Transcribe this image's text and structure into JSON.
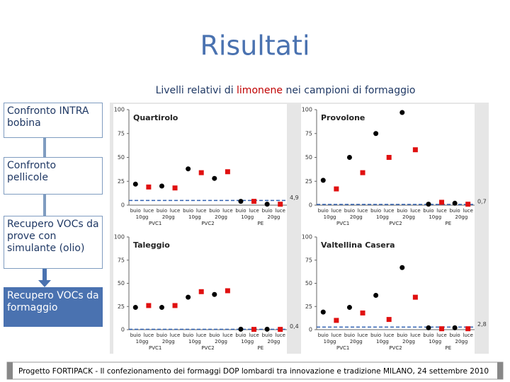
{
  "slide_title": "Risultati",
  "subtitle": [
    "Livelli relativi di ",
    "limonene",
    " nei campioni di formaggio"
  ],
  "steps": [
    "Confronto INTRA bobina",
    "Confronto pellicole",
    "Recupero VOCs da prove con simulante (olio)",
    "Recupero VOCs da formaggio"
  ],
  "footer": {
    "left": "Progetto FORTIPACK - Il confezionamento dei formaggi DOP lombardi tra innovazione e tradizione",
    "right": "MILANO, 24 settembre 2010"
  },
  "chart_data": [
    {
      "type": "scatter",
      "title": "Quartirolo",
      "categories": [
        "buio",
        "luce",
        "buio",
        "luce",
        "buio",
        "luce",
        "buio",
        "luce",
        "buio",
        "luce",
        "buio",
        "luce"
      ],
      "periods": [
        "10gg",
        "20gg",
        "10gg",
        "20gg",
        "10gg",
        "20gg"
      ],
      "materials": [
        "PVC1",
        "PVC2",
        "PE"
      ],
      "series": [
        {
          "color": "#000000",
          "marker": "circle",
          "values": [
            22,
            null,
            20,
            null,
            38,
            null,
            28,
            null,
            4,
            null,
            1,
            null
          ]
        },
        {
          "color": "#e01010",
          "marker": "square",
          "values": [
            null,
            19,
            null,
            18,
            null,
            34,
            null,
            35,
            null,
            4,
            null,
            1
          ]
        }
      ],
      "reference": {
        "value": 4.9,
        "label": "4,9",
        "color": "#3060b0"
      },
      "ylim": [
        0,
        100
      ],
      "yticks": [
        0,
        25,
        50,
        75,
        100
      ]
    },
    {
      "type": "scatter",
      "title": "Provolone",
      "categories": [
        "buio",
        "luce",
        "buio",
        "luce",
        "buio",
        "luce",
        "buio",
        "luce",
        "buio",
        "luce",
        "buio",
        "luce"
      ],
      "periods": [
        "10gg",
        "20gg",
        "10gg",
        "20gg",
        "10gg",
        "20gg"
      ],
      "materials": [
        "PVC1",
        "PVC2",
        "PE"
      ],
      "series": [
        {
          "color": "#000000",
          "marker": "circle",
          "values": [
            26,
            null,
            50,
            null,
            75,
            null,
            97,
            null,
            1,
            null,
            2,
            null
          ]
        },
        {
          "color": "#e01010",
          "marker": "square",
          "values": [
            null,
            17,
            null,
            34,
            null,
            50,
            null,
            58,
            null,
            3,
            null,
            1
          ]
        }
      ],
      "reference": {
        "value": 0.7,
        "label": "0,7",
        "color": "#3060b0"
      },
      "ylim": [
        0,
        100
      ],
      "yticks": [
        0,
        25,
        50,
        75,
        100
      ]
    },
    {
      "type": "scatter",
      "title": "Taleggio",
      "categories": [
        "buio",
        "luce",
        "buio",
        "luce",
        "buio",
        "luce",
        "buio",
        "luce",
        "buio",
        "luce",
        "buio",
        "luce"
      ],
      "periods": [
        "10gg",
        "20gg",
        "10gg",
        "20gg",
        "10gg",
        "20gg"
      ],
      "materials": [
        "PVC1",
        "PVC2",
        "PE"
      ],
      "series": [
        {
          "color": "#000000",
          "marker": "circle",
          "values": [
            24,
            null,
            24,
            null,
            35,
            null,
            38,
            null,
            0.5,
            null,
            0.5,
            null
          ]
        },
        {
          "color": "#e01010",
          "marker": "square",
          "values": [
            null,
            26,
            null,
            26,
            null,
            41,
            null,
            42,
            null,
            0.3,
            null,
            0.3
          ]
        }
      ],
      "reference": {
        "value": 0.4,
        "label": "0,4",
        "color": "#3060b0"
      },
      "ylim": [
        0,
        100
      ],
      "yticks": [
        0,
        25,
        50,
        75,
        100
      ]
    },
    {
      "type": "scatter",
      "title": "Valtellina Casera",
      "categories": [
        "buio",
        "luce",
        "buio",
        "luce",
        "buio",
        "luce",
        "buio",
        "luce",
        "buio",
        "luce",
        "buio",
        "luce"
      ],
      "periods": [
        "10gg",
        "20gg",
        "10gg",
        "20gg",
        "10gg",
        "20gg"
      ],
      "materials": [
        "PVC1",
        "PVC2",
        "PE"
      ],
      "series": [
        {
          "color": "#000000",
          "marker": "circle",
          "values": [
            19,
            null,
            24,
            null,
            37,
            null,
            67,
            null,
            2,
            null,
            2,
            null
          ]
        },
        {
          "color": "#e01010",
          "marker": "square",
          "values": [
            null,
            10,
            null,
            18,
            null,
            11,
            null,
            35,
            null,
            1,
            null,
            1
          ]
        }
      ],
      "reference": {
        "value": 2.8,
        "label": "2,8",
        "color": "#3060b0"
      },
      "ylim": [
        0,
        100
      ],
      "yticks": [
        0,
        25,
        50,
        75,
        100
      ]
    }
  ]
}
